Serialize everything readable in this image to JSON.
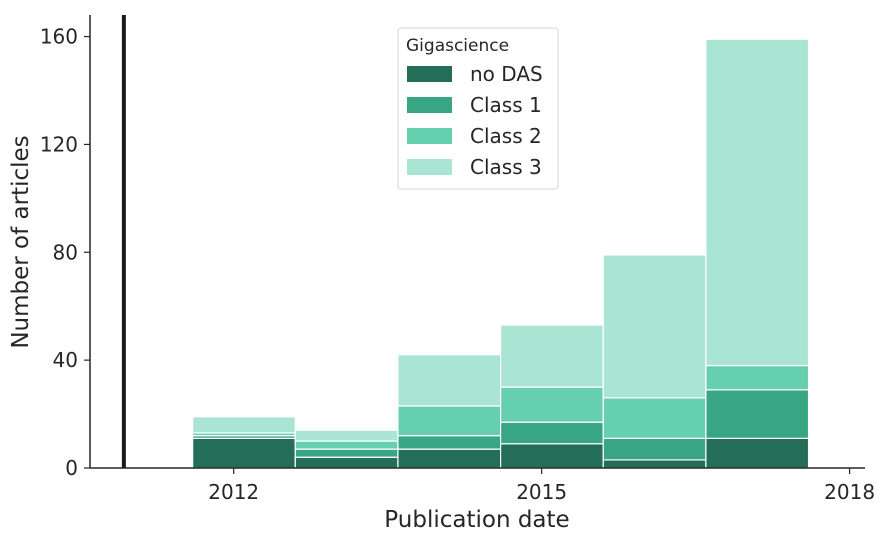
{
  "chart_data": {
    "type": "bar",
    "stacked": true,
    "histogram": true,
    "xlabel": "Publication date",
    "ylabel": "Number of articles",
    "x_ticks": [
      "2012",
      "2015",
      "2018"
    ],
    "y_ticks": [
      0,
      40,
      80,
      120,
      160
    ],
    "ylim": [
      0,
      168
    ],
    "xlim": [
      2010.6,
      2018.15
    ],
    "bins": [
      {
        "start": 2011.6,
        "end": 2012.6
      },
      {
        "start": 2012.6,
        "end": 2013.6
      },
      {
        "start": 2013.6,
        "end": 2014.6
      },
      {
        "start": 2014.6,
        "end": 2015.6
      },
      {
        "start": 2015.6,
        "end": 2016.6
      },
      {
        "start": 2016.6,
        "end": 2017.6
      }
    ],
    "series": [
      {
        "name": "no DAS",
        "color": "#246e58",
        "values": [
          11,
          4,
          7,
          9,
          3,
          11
        ]
      },
      {
        "name": "Class 1",
        "color": "#38a583",
        "values": [
          1,
          3,
          5,
          8,
          8,
          18
        ]
      },
      {
        "name": "Class 2",
        "color": "#66cfae",
        "values": [
          1,
          3,
          11,
          13,
          15,
          9
        ]
      },
      {
        "name": "Class 3",
        "color": "#aae4d2",
        "values": [
          6,
          4,
          19,
          23,
          53,
          121
        ]
      }
    ],
    "vertical_line_x": 2010.93,
    "legend": {
      "title": "Gigascience",
      "placement": "top-center"
    },
    "grid": false
  }
}
